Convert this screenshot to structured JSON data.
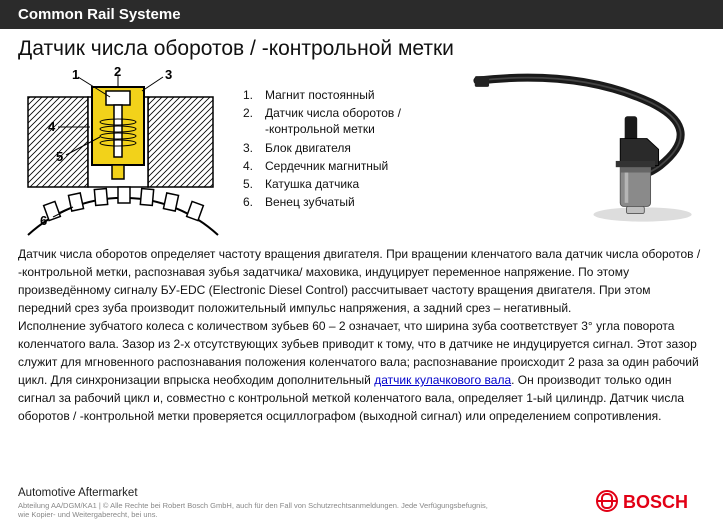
{
  "header": {
    "title": "Common Rail Systeme"
  },
  "page": {
    "title": "Датчик числа оборотов / -контрольной метки"
  },
  "legend": {
    "items": [
      {
        "num": "1.",
        "text": "Магнит постоянный"
      },
      {
        "num": "2.",
        "text": "Датчик числа оборотов / -контрольной метки"
      },
      {
        "num": "3.",
        "text": "Блок двигателя"
      },
      {
        "num": "4.",
        "text": "Сердечник магнитный"
      },
      {
        "num": "5.",
        "text": "Катушка датчика"
      },
      {
        "num": "6.",
        "text": "Венец зубчатый"
      }
    ]
  },
  "diagram": {
    "callouts": [
      "1",
      "2",
      "3",
      "4",
      "5",
      "6"
    ],
    "colors": {
      "sensor_body": "#f2d21a",
      "outline": "#000000",
      "hatch": "#000000",
      "background": "#ffffff",
      "gear": "#ffffff"
    }
  },
  "photo": {
    "colors": {
      "cable": "#1a1a1a",
      "body_metal": "#8a8a8a",
      "body_dark": "#222222",
      "tip": "#bfbfbf",
      "shadow": "#cccccc",
      "background": "#ffffff"
    }
  },
  "body": {
    "paragraph": "Датчик числа оборотов определяет частоту вращения двигателя. При вращении кленчатого вала датчик числа оборотов / -контрольной метки, распознавая зубья задатчика/ маховика, индуцирует переменное напряжение. По этому произведённому сигналу БУ-EDC (Electronic Diesel Control) рассчитывает частоту вращения двигателя. При этом передний срез зуба производит положительный импульс напряжения, а задний срез – негативный.\nИсполнение зубчатого колеса с количеством зубьев 60 – 2 означает, что ширина зуба соответствует 3° угла поворота коленчатого вала. Зазор из 2-х отсутствующих зубьев приводит к тому, что в датчике не индуцируется сигнал. Этот зазор служит для мгновенного распознавания положения коленчатого вала; распознавание происходит 2 раза за один рабочий цикл. Для синхронизации впрыска необходим дополнительный ",
    "link_text": "датчик кулачкового вала",
    "paragraph_after": ". Он производит только один сигнал за рабочий цикл и, совместно с контрольной меткой коленчатого вала, определяет 1-ый цилиндр. Датчик числа оборотов / -контрольной метки проверяется осциллографом (выходной сигнал) или определением сопротивления."
  },
  "footer": {
    "title": "Automotive Aftermarket",
    "legal1": "Abteilung AA/DGM/KA1 | © Alle Rechte bei Robert Bosch GmbH, auch für den Fall von Schutzrechtsanmeldungen. Jede Verfügungsbefugnis,",
    "legal2": "wie Kopier- und Weitergaberecht, bei uns.",
    "logo_text": "BOSCH",
    "logo_color": "#e20015"
  }
}
